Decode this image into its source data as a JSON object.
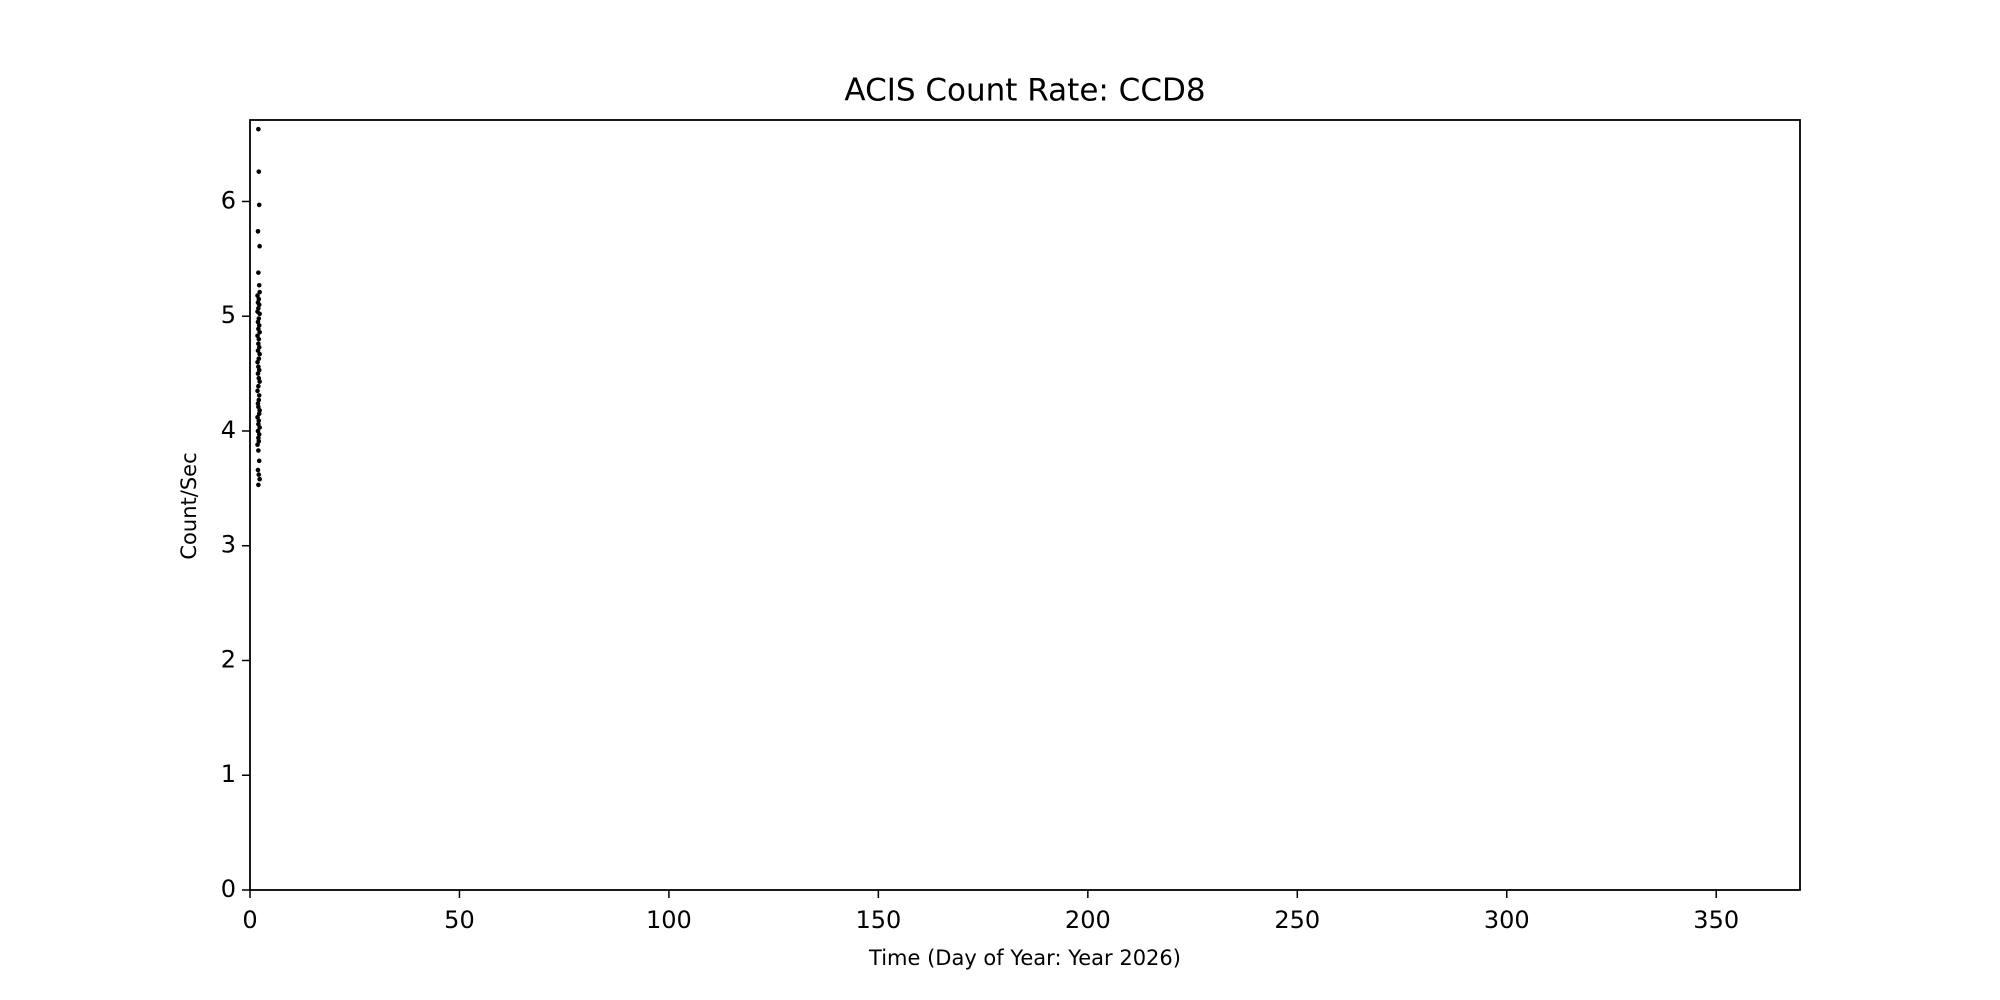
{
  "chart_data": {
    "type": "scatter",
    "title": "ACIS Count Rate: CCD8",
    "xlabel": "Time (Day of Year: Year 2026)",
    "ylabel": "Count/Sec",
    "color": "#000000",
    "x": [
      2.0,
      2.1,
      2.2,
      1.9,
      2.3,
      2.0,
      2.2,
      2.3,
      1.8,
      2.1,
      1.9,
      2.2,
      2.0,
      1.8,
      2.3,
      2.1,
      1.9,
      2.2,
      2.0,
      2.3,
      1.8,
      2.1,
      2.0,
      2.2,
      1.9,
      2.3,
      2.1,
      1.8,
      2.0,
      2.2,
      1.9,
      2.1,
      2.3,
      2.0,
      1.8,
      2.2,
      2.1,
      1.9,
      2.0,
      2.3,
      2.2,
      1.8,
      2.1,
      2.0,
      2.3,
      1.9,
      2.2,
      2.0,
      2.1,
      1.8,
      2.0,
      2.2,
      1.9,
      2.1,
      2.3,
      2.0
    ],
    "values": [
      6.63,
      6.26,
      5.97,
      5.74,
      5.61,
      5.38,
      5.27,
      5.21,
      5.18,
      5.15,
      5.12,
      5.1,
      5.07,
      5.04,
      5.02,
      4.98,
      4.95,
      4.92,
      4.89,
      4.86,
      4.83,
      4.8,
      4.76,
      4.73,
      4.7,
      4.67,
      4.63,
      4.6,
      4.56,
      4.53,
      4.5,
      4.46,
      4.43,
      4.39,
      4.35,
      4.31,
      4.27,
      4.24,
      4.21,
      4.18,
      4.15,
      4.12,
      4.09,
      4.06,
      4.03,
      4.0,
      3.97,
      3.94,
      3.91,
      3.88,
      3.83,
      3.74,
      3.66,
      3.62,
      3.58,
      3.53
    ],
    "xlim": [
      0,
      370
    ],
    "xticks": [
      0,
      50,
      100,
      150,
      200,
      250,
      300,
      350
    ],
    "ylim": [
      0,
      6.71
    ],
    "yticks": [
      0,
      1,
      2,
      3,
      4,
      5,
      6
    ],
    "grid": false
  }
}
